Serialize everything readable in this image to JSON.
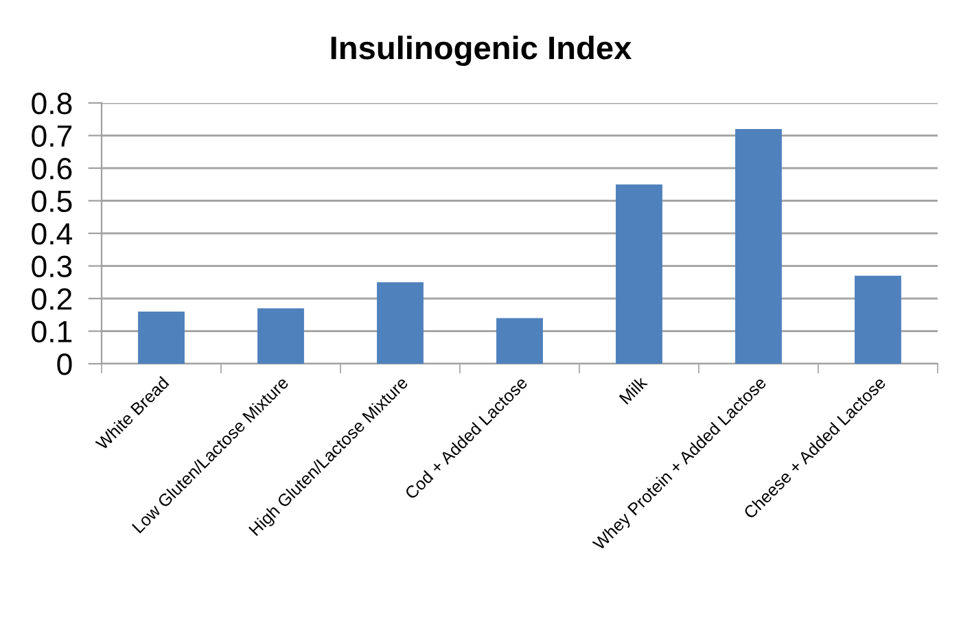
{
  "chart_data": {
    "type": "bar",
    "title": "Insulinogenic Index",
    "categories": [
      "White Bread",
      "Low Gluten/Lactose Mixture",
      "High Gluten/Lactose Mixture",
      "Cod + Added Lactose",
      "Milk",
      "Whey Protein + Added Lactose",
      "Cheese + Added Lactose"
    ],
    "values": [
      0.16,
      0.17,
      0.25,
      0.14,
      0.55,
      0.72,
      0.27
    ],
    "color": "#4f81bd",
    "ylim": [
      0,
      0.8
    ],
    "yticks": [
      0,
      0.1,
      0.2,
      0.3,
      0.4,
      0.5,
      0.6,
      0.7,
      0.8
    ],
    "grid": "y"
  }
}
